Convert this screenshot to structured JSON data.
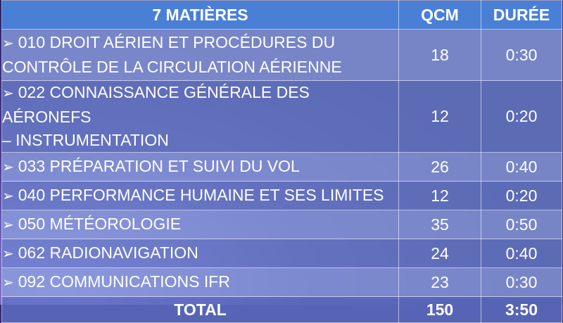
{
  "header": {
    "subjects_label": "7 MATIÈRES",
    "qcm_label": "QCM",
    "duration_label": "DURÉE"
  },
  "rows": [
    {
      "line1": "010 DROIT AÉRIEN ET PROCÉDURES DU",
      "line2": "CONTRÔLE DE LA CIRCULATION AÉRIENNE",
      "qcm": "18",
      "duration": "0:30"
    },
    {
      "line1": "022 CONNAISSANCE GÉNÉRALE DES AÉRONEFS",
      "line2": "– INSTRUMENTATION",
      "qcm": "12",
      "duration": "0:20"
    },
    {
      "line1": "033 PRÉPARATION ET SUIVI DU VOL",
      "qcm": "26",
      "duration": "0:40"
    },
    {
      "line1": "040 PERFORMANCE HUMAINE ET SES LIMITES",
      "qcm": "12",
      "duration": "0:20"
    },
    {
      "line1": "050 MÉTÉOROLOGIE",
      "qcm": "35",
      "duration": "0:50"
    },
    {
      "line1": "062 RADIONAVIGATION",
      "qcm": "24",
      "duration": "0:40"
    },
    {
      "line1": "092 COMMUNICATIONS IFR",
      "qcm": "23",
      "duration": "0:30"
    }
  ],
  "footer": {
    "total_label": "TOTAL",
    "total_qcm": "150",
    "total_duration": "3:50"
  },
  "icons": {
    "bullet": "arrow-bullet-icon",
    "bullet_glyph": "➢"
  }
}
